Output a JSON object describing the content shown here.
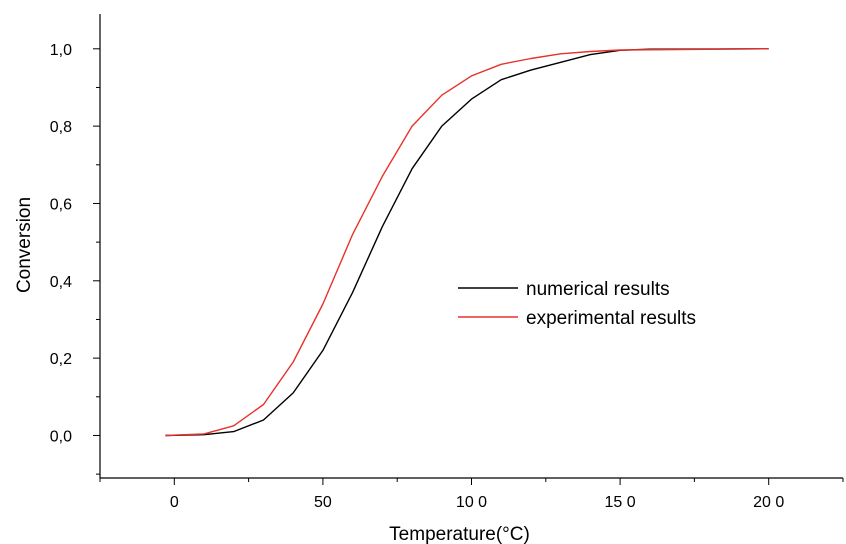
{
  "chart_data": {
    "type": "line",
    "xlabel": "Temperature(°C)",
    "ylabel": "Conversion",
    "xlim": [
      -25,
      225
    ],
    "ylim": [
      -0.11,
      1.09
    ],
    "x_ticks": [
      0,
      50,
      100,
      150,
      200
    ],
    "x_tick_labels": [
      "0",
      "50",
      "10 0",
      "15 0",
      "20 0"
    ],
    "y_ticks": [
      0.0,
      0.2,
      0.4,
      0.6,
      0.8,
      1.0
    ],
    "y_tick_labels": [
      "0,0",
      "0,2",
      "0,4",
      "0,6",
      "0,8",
      "1,0"
    ],
    "grid": false,
    "legend_position": "center-right",
    "series": [
      {
        "name": "numerical results",
        "color": "#000000",
        "points": [
          [
            -3,
            0.0
          ],
          [
            10,
            0.002
          ],
          [
            20,
            0.01
          ],
          [
            30,
            0.04
          ],
          [
            40,
            0.11
          ],
          [
            50,
            0.22
          ],
          [
            60,
            0.37
          ],
          [
            70,
            0.54
          ],
          [
            80,
            0.69
          ],
          [
            90,
            0.8
          ],
          [
            100,
            0.87
          ],
          [
            110,
            0.92
          ],
          [
            120,
            0.945
          ],
          [
            130,
            0.965
          ],
          [
            140,
            0.985
          ],
          [
            150,
            0.996
          ],
          [
            160,
            0.999
          ],
          [
            200,
            1.0
          ]
        ]
      },
      {
        "name": "experimental results",
        "color": "#e8312a",
        "points": [
          [
            -3,
            0.0
          ],
          [
            10,
            0.004
          ],
          [
            20,
            0.025
          ],
          [
            30,
            0.08
          ],
          [
            40,
            0.19
          ],
          [
            50,
            0.34
          ],
          [
            60,
            0.52
          ],
          [
            70,
            0.67
          ],
          [
            80,
            0.8
          ],
          [
            90,
            0.88
          ],
          [
            100,
            0.93
          ],
          [
            110,
            0.96
          ],
          [
            120,
            0.975
          ],
          [
            130,
            0.987
          ],
          [
            140,
            0.993
          ],
          [
            150,
            0.997
          ],
          [
            200,
            1.0
          ]
        ]
      }
    ]
  }
}
